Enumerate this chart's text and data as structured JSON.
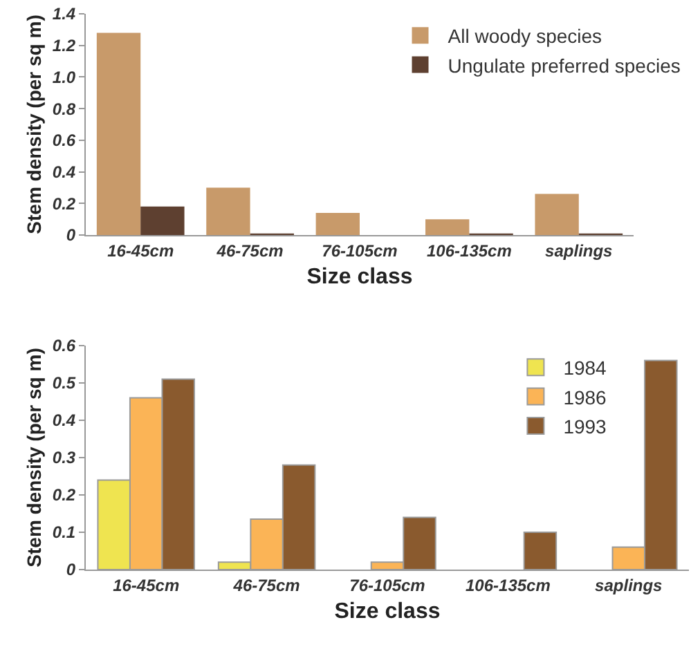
{
  "chart_data": [
    {
      "type": "bar",
      "xlabel": "Size class",
      "ylabel": "Stem density (per sq m)",
      "categories": [
        "16-45cm",
        "46-75cm",
        "76-105cm",
        "106-135cm",
        "saplings"
      ],
      "series": [
        {
          "name": "All woody species",
          "color": "#c89a6a",
          "values": [
            1.28,
            0.3,
            0.14,
            0.1,
            0.26
          ]
        },
        {
          "name": "Ungulate preferred species",
          "color": "#5e4030",
          "values": [
            0.18,
            0.01,
            0,
            0.01,
            0.01
          ]
        }
      ],
      "ylim": [
        0,
        1.4
      ],
      "yticks": [
        0,
        0.2,
        0.4,
        0.6,
        0.8,
        {
          "value": 1,
          "label": "1.0"
        },
        1.2,
        1.4
      ],
      "grid": false,
      "legend": "top right"
    },
    {
      "type": "bar",
      "xlabel": "Size class",
      "ylabel": "Stem density (per sq m)",
      "categories": [
        "16-45cm",
        "46-75cm",
        "76-105cm",
        "106-135cm",
        "saplings"
      ],
      "series": [
        {
          "name": "1984",
          "color": "#efe450",
          "values": [
            0.24,
            0.02,
            0,
            0,
            0
          ]
        },
        {
          "name": "1986",
          "color": "#fbb456",
          "values": [
            0.46,
            0.135,
            0.02,
            0,
            0.06
          ]
        },
        {
          "name": "1993",
          "color": "#8a5a2e",
          "values": [
            0.51,
            0.28,
            0.14,
            0.1,
            0.56
          ]
        }
      ],
      "ylim": [
        0,
        0.6
      ],
      "yticks": [
        0,
        0.1,
        0.2,
        0.3,
        0.4,
        0.5,
        0.6
      ],
      "grid": false,
      "legend": "top right"
    }
  ]
}
